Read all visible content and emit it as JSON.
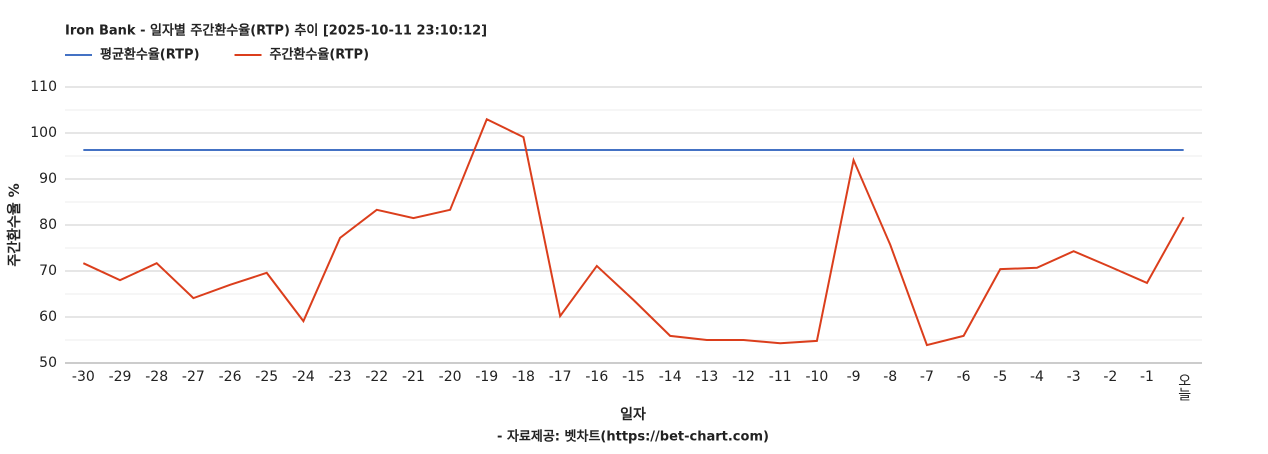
{
  "chart_data": {
    "type": "line",
    "title": "Iron Bank - 일자별 주간환수율(RTP) 추이 [2025-10-11 23:10:12]",
    "x_label": "일자",
    "y_label": "주간환수율 %",
    "footer": "- 자료제공: 벳차트(https://bet-chart.com)",
    "categories": [
      "-30",
      "-29",
      "-28",
      "-27",
      "-26",
      "-25",
      "-24",
      "-23",
      "-22",
      "-21",
      "-20",
      "-19",
      "-18",
      "-17",
      "-16",
      "-15",
      "-14",
      "-13",
      "-12",
      "-11",
      "-10",
      "-9",
      "-8",
      "-7",
      "-6",
      "-5",
      "-4",
      "-3",
      "-2",
      "-1",
      "오늘"
    ],
    "series": [
      {
        "name": "평균환수율(RTP)",
        "color": "#4472c4",
        "values": [
          96.3,
          96.3,
          96.3,
          96.3,
          96.3,
          96.3,
          96.3,
          96.3,
          96.3,
          96.3,
          96.3,
          96.3,
          96.3,
          96.3,
          96.3,
          96.3,
          96.3,
          96.3,
          96.3,
          96.3,
          96.3,
          96.3,
          96.3,
          96.3,
          96.3,
          96.3,
          96.3,
          96.3,
          96.3,
          96.3,
          96.3
        ]
      },
      {
        "name": "주간환수율(RTP)",
        "color": "#db3e1c",
        "values": [
          71.7,
          68.0,
          71.7,
          64.1,
          67.0,
          69.6,
          59.1,
          77.2,
          83.3,
          81.5,
          83.3,
          103.0,
          99.1,
          60.2,
          71.1,
          63.7,
          55.9,
          55.0,
          55.0,
          54.3,
          54.8,
          94.1,
          75.7,
          53.9,
          55.9,
          70.4,
          70.7,
          74.3,
          70.9,
          67.4,
          81.7
        ]
      }
    ],
    "ylim": [
      50,
      110
    ],
    "yticks": [
      50,
      60,
      70,
      80,
      90,
      100,
      110
    ],
    "minor_yticks": [
      55,
      65,
      75,
      85,
      95,
      105
    ],
    "grid": true,
    "legend": "top-left"
  }
}
